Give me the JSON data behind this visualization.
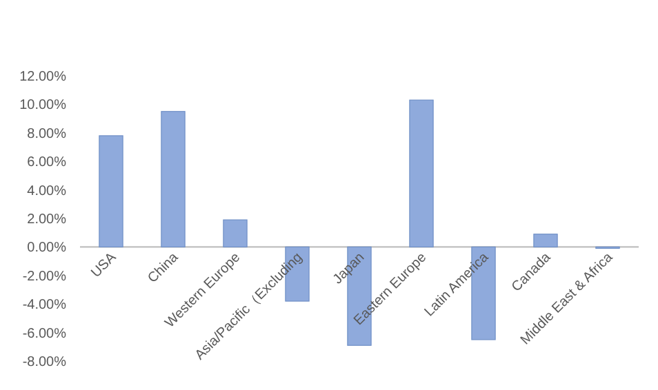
{
  "chart_data": {
    "type": "bar",
    "categories": [
      "USA",
      "China",
      "Western Europe",
      "Asia/Pacific（Excluding",
      "Japan",
      "Eastern Europe",
      "Latin America",
      "Canada",
      "Middle East & Africa"
    ],
    "values": [
      7.8,
      9.5,
      1.9,
      -3.8,
      -6.9,
      10.3,
      -6.5,
      0.9,
      -0.1
    ],
    "color": "#8faadc",
    "ylim": [
      -8,
      12
    ],
    "yticks": [
      {
        "value": -8,
        "label": "-8.00%"
      },
      {
        "value": -6,
        "label": "-6.00%"
      },
      {
        "value": -4,
        "label": "-4.00%"
      },
      {
        "value": -2,
        "label": "-2.00%"
      },
      {
        "value": 0,
        "label": "0.00%"
      },
      {
        "value": 2,
        "label": "2.00%"
      },
      {
        "value": 4,
        "label": "4.00%"
      },
      {
        "value": 6,
        "label": "6.00%"
      },
      {
        "value": 8,
        "label": "8.00%"
      },
      {
        "value": 10,
        "label": "10.00%"
      },
      {
        "value": 12,
        "label": "12.00%"
      }
    ],
    "grid": false
  }
}
